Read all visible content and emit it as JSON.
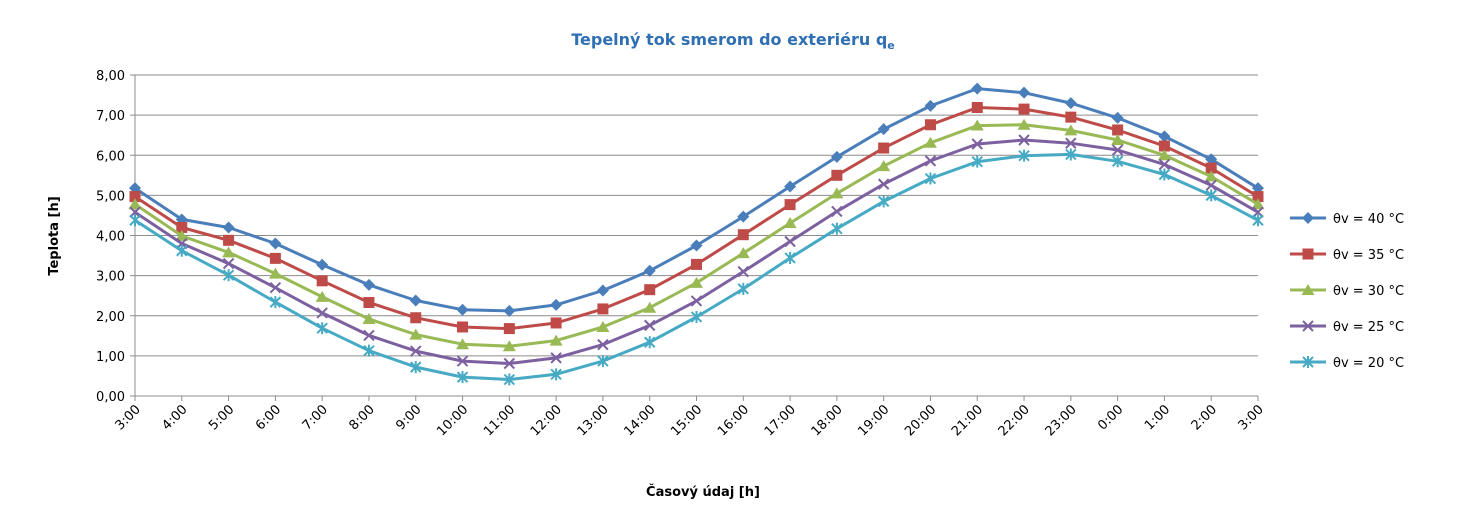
{
  "chart_data": {
    "type": "line",
    "title": "Tepelný tok smerom do exteriéru q",
    "title_subscript": "e",
    "title_color": "#2F6FB3",
    "xlabel": "Časový údaj [h]",
    "ylabel": "Teplota [h]",
    "ylim": [
      0,
      8
    ],
    "ytick_step": 1,
    "ytick_labels": [
      "0,00",
      "1,00",
      "2,00",
      "3,00",
      "4,00",
      "5,00",
      "6,00",
      "7,00",
      "8,00"
    ],
    "grid": true,
    "legend_position": "right",
    "categories": [
      "3:00",
      "4:00",
      "5:00",
      "6:00",
      "7:00",
      "8:00",
      "9:00",
      "10:00",
      "11:00",
      "12:00",
      "13:00",
      "14:00",
      "15:00",
      "16:00",
      "17:00",
      "18:00",
      "19:00",
      "20:00",
      "21:00",
      "22:00",
      "23:00",
      "0:00",
      "1:00",
      "2:00",
      "3:00"
    ],
    "series": [
      {
        "name": "θv = 40 °C",
        "color": "#4A7EBB",
        "marker": "diamond",
        "values": [
          5.18,
          4.4,
          4.2,
          3.8,
          3.27,
          2.77,
          2.38,
          2.15,
          2.12,
          2.27,
          2.63,
          3.12,
          3.75,
          4.47,
          5.22,
          5.96,
          6.65,
          7.23,
          7.66,
          7.56,
          7.3,
          6.93,
          6.47,
          5.9,
          5.18
        ]
      },
      {
        "name": "θv = 35 °C",
        "color": "#BE4B48",
        "marker": "square",
        "values": [
          4.97,
          4.2,
          3.88,
          3.43,
          2.87,
          2.33,
          1.95,
          1.72,
          1.68,
          1.82,
          2.17,
          2.65,
          3.28,
          4.02,
          4.77,
          5.5,
          6.18,
          6.76,
          7.19,
          7.15,
          6.95,
          6.63,
          6.23,
          5.68,
          4.97
        ]
      },
      {
        "name": "θv = 30 °C",
        "color": "#98B954",
        "marker": "triangle",
        "values": [
          4.78,
          3.99,
          3.58,
          3.05,
          2.47,
          1.92,
          1.53,
          1.29,
          1.24,
          1.38,
          1.72,
          2.2,
          2.82,
          3.56,
          4.31,
          5.05,
          5.73,
          6.31,
          6.74,
          6.76,
          6.62,
          6.38,
          6.0,
          5.47,
          4.78
        ]
      },
      {
        "name": "θv = 25 °C",
        "color": "#7D60A0",
        "marker": "x",
        "values": [
          4.58,
          3.8,
          3.3,
          2.7,
          2.07,
          1.51,
          1.12,
          0.87,
          0.81,
          0.95,
          1.28,
          1.76,
          2.37,
          3.1,
          3.85,
          4.6,
          5.28,
          5.86,
          6.28,
          6.38,
          6.3,
          6.13,
          5.77,
          5.25,
          4.58
        ]
      },
      {
        "name": "θv = 20 °C",
        "color": "#46AAC5",
        "marker": "star",
        "values": [
          4.38,
          3.62,
          3.01,
          2.34,
          1.69,
          1.13,
          0.72,
          0.47,
          0.41,
          0.54,
          0.87,
          1.34,
          1.97,
          2.67,
          3.44,
          4.17,
          4.85,
          5.42,
          5.84,
          5.99,
          6.02,
          5.85,
          5.52,
          5.0,
          4.38
        ]
      }
    ]
  }
}
